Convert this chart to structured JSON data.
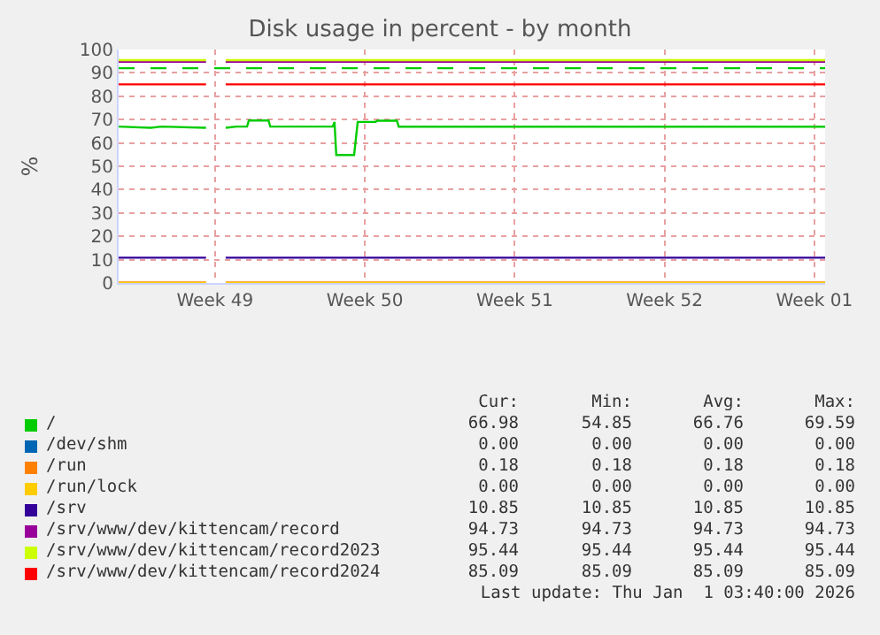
{
  "chart_data": {
    "type": "line",
    "title": "Disk usage in percent - by month",
    "ylabel": "%",
    "xlim": [
      "2025-11-30T00:00",
      "2026-01-02T00:00"
    ],
    "xticks": [
      {
        "value": "2025-12-04T12:00",
        "label": "Week 49"
      },
      {
        "value": "2025-12-11T12:00",
        "label": "Week 50"
      },
      {
        "value": "2025-12-18T12:00",
        "label": "Week 51"
      },
      {
        "value": "2025-12-25T12:00",
        "label": "Week 52"
      },
      {
        "value": "2026-01-01T12:00",
        "label": "Week 01"
      }
    ],
    "ylim": [
      0,
      100
    ],
    "yticks": [
      0,
      10,
      20,
      30,
      40,
      50,
      60,
      70,
      80,
      90,
      100
    ],
    "grid": true,
    "legend": "bottom",
    "line_style": "solid",
    "marker": "none",
    "series": [
      {
        "name": "/",
        "color": "#00cc00",
        "x": [
          "2025-11-30T00:00",
          "2025-12-01T12:00",
          "2025-12-02T00:00",
          "2025-12-04T02:00",
          "2025-12-04T12:00",
          "2025-12-05T00:00",
          "2025-12-05T12:00",
          "2025-12-06T00:00",
          "2025-12-06T02:00",
          "2025-12-07T00:00",
          "2025-12-07T02:00",
          "2025-12-10T00:00",
          "2025-12-10T02:00",
          "2025-12-10T04:00",
          "2025-12-11T00:00",
          "2025-12-11T04:00",
          "2025-12-12T00:00",
          "2025-12-12T02:00",
          "2025-12-13T00:00",
          "2025-12-13T02:00",
          "2026-01-02T00:00"
        ],
        "values": [
          67,
          66.5,
          67,
          66.5,
          null,
          66.5,
          67,
          67,
          69.59,
          69.59,
          67,
          67,
          69,
          54.85,
          54.85,
          69,
          69,
          69.5,
          69.5,
          66.98,
          66.98
        ]
      },
      {
        "name": "/dev/shm",
        "color": "#0066b3"
      },
      {
        "name": "/run",
        "color": "#ff8000",
        "x": [
          "2025-11-30T00:00",
          "2025-12-04T02:00",
          "2025-12-04T12:00",
          "2025-12-05T00:00",
          "2026-01-02T00:00"
        ],
        "values": [
          0.18,
          0.18,
          null,
          0.18,
          0.18
        ]
      },
      {
        "name": "/run/lock",
        "color": "#ffcc00",
        "x": [
          "2025-11-30T00:00",
          "2025-12-04T02:00",
          "2025-12-04T12:00",
          "2025-12-05T00:00",
          "2026-01-02T00:00"
        ],
        "values": [
          0,
          0,
          null,
          0,
          0
        ]
      },
      {
        "name": "/srv",
        "color": "#330099",
        "x": [
          "2025-11-30T00:00",
          "2025-12-04T02:00",
          "2025-12-04T12:00",
          "2025-12-05T00:00",
          "2026-01-02T00:00"
        ],
        "values": [
          10.85,
          10.85,
          null,
          10.85,
          10.85
        ]
      },
      {
        "name": "/srv/www/dev/kittencam/record",
        "color": "#990099",
        "x": [
          "2025-11-30T00:00",
          "2025-12-04T02:00",
          "2025-12-04T12:00",
          "2025-12-05T00:00",
          "2026-01-02T00:00"
        ],
        "values": [
          94.73,
          94.73,
          null,
          94.73,
          94.73
        ]
      },
      {
        "name": "/srv/www/dev/kittencam/record2023",
        "color": "#ccff00",
        "x": [
          "2025-11-30T00:00",
          "2025-12-04T02:00",
          "2025-12-04T12:00",
          "2025-12-05T00:00",
          "2026-01-02T00:00"
        ],
        "values": [
          95.44,
          95.44,
          null,
          95.44,
          95.44
        ]
      },
      {
        "name": "/srv/www/dev/kittencam/record2024",
        "color": "#ff0000",
        "x": [
          "2025-11-30T00:00",
          "2025-12-04T02:00",
          "2025-12-04T12:00",
          "2025-12-05T00:00",
          "2026-01-02T00:00"
        ],
        "values": [
          85.09,
          85.09,
          null,
          85.09,
          85.09
        ]
      }
    ],
    "ref_lines": [
      {
        "axis": "y",
        "value": 92,
        "color": "#00cc00",
        "line_style": "dashed"
      }
    ],
    "annotations": [
      "Cur:",
      "Min:",
      "Avg:",
      "Max:",
      "66.98",
      "54.85",
      "66.76",
      "69.59",
      "0.00",
      "0.00",
      "0.00",
      "0.00",
      "0.18",
      "0.18",
      "0.18",
      "0.18",
      "0.00",
      "0.00",
      "0.00",
      "0.00",
      "10.85",
      "10.85",
      "10.85",
      "10.85",
      "94.73",
      "94.73",
      "94.73",
      "94.73",
      "95.44",
      "95.44",
      "95.44",
      "95.44",
      "85.09",
      "85.09",
      "85.09",
      "85.09",
      "Last update: Thu Jan  1 03:40:00 2026"
    ]
  }
}
